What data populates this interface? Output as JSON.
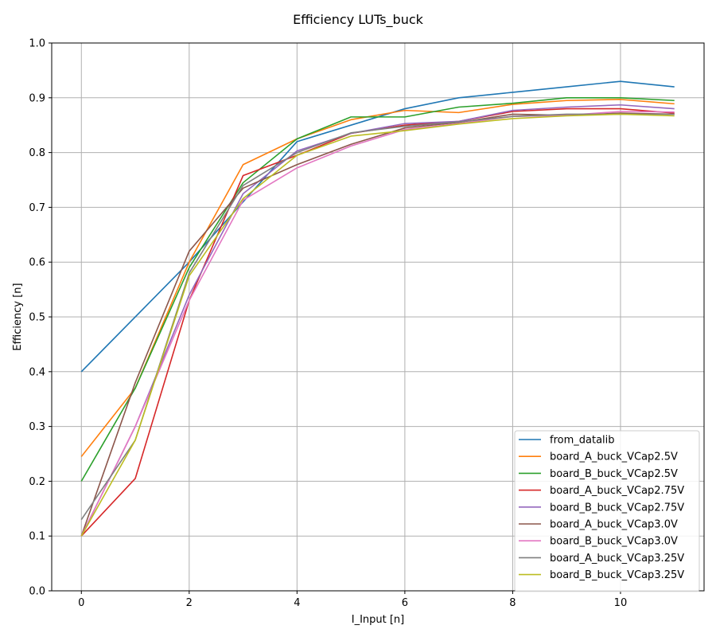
{
  "chart_data": {
    "type": "line",
    "title": "Efficiency LUTs_buck",
    "xlabel": "I_Input [n]",
    "ylabel": "Efficiency [n]",
    "xlim": [
      -0.55,
      11.55
    ],
    "ylim": [
      0.0,
      1.0
    ],
    "xticks": [
      0,
      2,
      4,
      6,
      8,
      10
    ],
    "yticks": [
      0.0,
      0.1,
      0.2,
      0.3,
      0.4,
      0.5,
      0.6,
      0.7,
      0.8,
      0.9,
      1.0
    ],
    "xtick_labels": [
      "0",
      "2",
      "4",
      "6",
      "8",
      "10"
    ],
    "ytick_labels": [
      "0.0",
      "0.1",
      "0.2",
      "0.3",
      "0.4",
      "0.5",
      "0.6",
      "0.7",
      "0.8",
      "0.9",
      "1.0"
    ],
    "grid": true,
    "legend_position": "bottom-right",
    "x": [
      0,
      1,
      2,
      3,
      4,
      5,
      6,
      7,
      8,
      9,
      10,
      11
    ],
    "series": [
      {
        "name": "from_datalib",
        "color": "#1f77b4",
        "x": [
          0,
          2,
          4,
          6,
          7,
          8,
          9,
          10,
          11
        ],
        "values": [
          0.4,
          0.6,
          0.82,
          0.88,
          0.9,
          0.91,
          0.92,
          0.93,
          0.92
        ]
      },
      {
        "name": "board_A_buck_VCap2.5V",
        "color": "#ff7f0e",
        "values": [
          0.245,
          0.37,
          0.6,
          0.778,
          0.825,
          0.86,
          0.877,
          0.873,
          0.888,
          0.895,
          0.897,
          0.889
        ]
      },
      {
        "name": "board_B_buck_VCap2.5V",
        "color": "#2ca02c",
        "values": [
          0.2,
          0.37,
          0.59,
          0.745,
          0.825,
          0.865,
          0.865,
          0.883,
          0.89,
          0.9,
          0.9,
          0.895
        ]
      },
      {
        "name": "board_A_buck_VCap2.75V",
        "color": "#d62728",
        "values": [
          0.1,
          0.205,
          0.53,
          0.758,
          0.795,
          0.835,
          0.85,
          0.857,
          0.875,
          0.88,
          0.88,
          0.872
        ]
      },
      {
        "name": "board_B_buck_VCap2.75V",
        "color": "#9467bd",
        "values": [
          0.1,
          0.3,
          0.54,
          0.725,
          0.803,
          0.835,
          0.853,
          0.857,
          0.877,
          0.883,
          0.887,
          0.88
        ]
      },
      {
        "name": "board_A_buck_VCap3.0V",
        "color": "#8c564b",
        "values": [
          0.1,
          0.38,
          0.62,
          0.735,
          0.778,
          0.815,
          0.845,
          0.855,
          0.87,
          0.868,
          0.872,
          0.87
        ]
      },
      {
        "name": "board_B_buck_VCap3.0V",
        "color": "#e377c2",
        "values": [
          0.1,
          0.3,
          0.53,
          0.713,
          0.772,
          0.812,
          0.842,
          0.853,
          0.866,
          0.868,
          0.875,
          0.874
        ]
      },
      {
        "name": "board_A_buck_VCap3.25V",
        "color": "#7f7f7f",
        "values": [
          0.13,
          0.275,
          0.58,
          0.74,
          0.8,
          0.836,
          0.848,
          0.856,
          0.866,
          0.87,
          0.87,
          0.87
        ]
      },
      {
        "name": "board_B_buck_VCap3.25V",
        "color": "#bcbd22",
        "values": [
          0.1,
          0.275,
          0.575,
          0.716,
          0.795,
          0.83,
          0.84,
          0.852,
          0.862,
          0.867,
          0.87,
          0.867
        ]
      }
    ]
  }
}
